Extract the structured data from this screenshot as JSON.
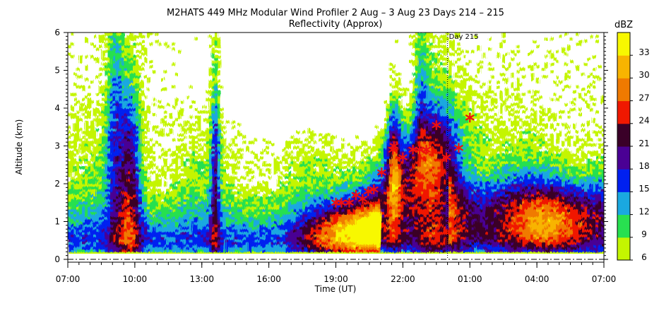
{
  "chart_data": {
    "type": "heatmap",
    "title": "M2HATS 449 MHz Modular Wind Profiler    2 Aug –   3 Aug 23 Days 214 – 215",
    "subtitle": "Reflectivity (Approx)",
    "xlabel": "Time (UT)",
    "ylabel": "Altitude (km)",
    "x_ticks": [
      "07:00",
      "10:00",
      "13:00",
      "16:00",
      "19:00",
      "22:00",
      "01:00",
      "04:00",
      "07:00"
    ],
    "y_ticks": [
      "0",
      "1",
      "2",
      "3",
      "4",
      "5",
      "6"
    ],
    "ylim": [
      0,
      6
    ],
    "xlim_hours": [
      0,
      24
    ],
    "day_marker": {
      "label": "Day 215",
      "hour": 17
    },
    "colorbar": {
      "unit": "dBZ",
      "ticks": [
        "6",
        "9",
        "12",
        "15",
        "18",
        "21",
        "24",
        "27",
        "30",
        "33"
      ],
      "levels": [
        6,
        9,
        12,
        15,
        18,
        21,
        24,
        27,
        30,
        33,
        36
      ],
      "colors": [
        "#c4f500",
        "#28e050",
        "#1aa8e0",
        "#0020f0",
        "#4a0094",
        "#3a0028",
        "#f01800",
        "#f07a00",
        "#f8b400",
        "#f8f800"
      ]
    },
    "markers": [
      {
        "x": 12.0,
        "y": 1.5
      },
      {
        "x": 12.25,
        "y": 1.5
      },
      {
        "x": 12.6,
        "y": 1.5
      },
      {
        "x": 12.9,
        "y": 1.7
      },
      {
        "x": 13.2,
        "y": 1.6
      },
      {
        "x": 13.45,
        "y": 1.8
      },
      {
        "x": 13.7,
        "y": 1.85
      },
      {
        "x": 14.05,
        "y": 2.3
      },
      {
        "x": 14.55,
        "y": 2.9
      },
      {
        "x": 14.6,
        "y": 3.0
      },
      {
        "x": 15.0,
        "y": 2.7
      },
      {
        "x": 15.45,
        "y": 2.9
      },
      {
        "x": 15.75,
        "y": 2.9
      },
      {
        "x": 16.05,
        "y": 2.9
      },
      {
        "x": 16.5,
        "y": 3.55
      },
      {
        "x": 16.95,
        "y": 2.7
      },
      {
        "x": 17.5,
        "y": 2.95
      },
      {
        "x": 18.0,
        "y": 3.75
      }
    ],
    "grid": false
  }
}
